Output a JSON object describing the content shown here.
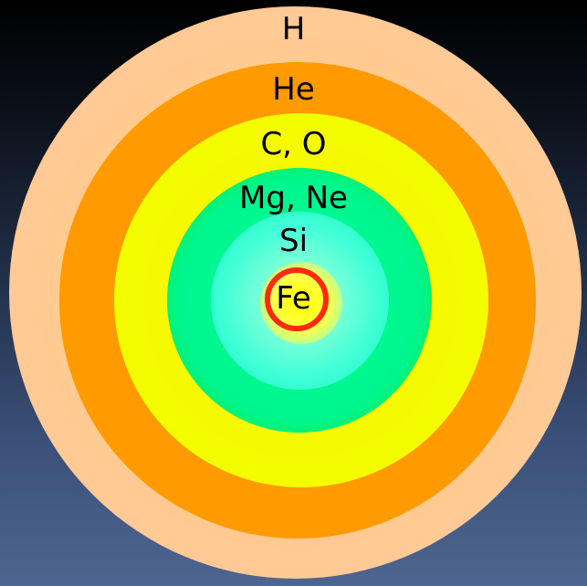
{
  "layers": [
    {
      "id": "h",
      "label": "H"
    },
    {
      "id": "he",
      "label": "He"
    },
    {
      "id": "co",
      "label": "C, O"
    },
    {
      "id": "mgne",
      "label": "Mg, Ne"
    },
    {
      "id": "si",
      "label": "Si"
    },
    {
      "id": "fe",
      "label": "Fe"
    }
  ],
  "colors": {
    "h": "#ffc89a",
    "he": "#ff9a00",
    "co": "#f2ff00",
    "mgne": "#00f58c",
    "si": "#40ffd8",
    "fe": "#ffff00",
    "fe_ring": "#ff2a10"
  }
}
